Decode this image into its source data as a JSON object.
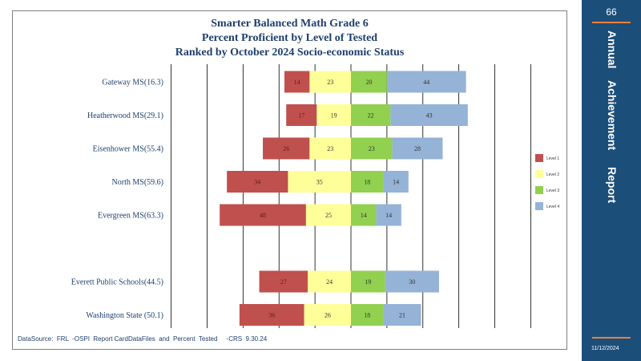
{
  "page": {
    "number": "66",
    "side_title": [
      "Annual",
      "Achievement",
      "Report"
    ],
    "footer_date": "11/12/2024",
    "source_note": "DataSource:  FRL  -OSPI  Report CardDataFiles  and  Percent  Tested     -CRS  9.30.24"
  },
  "colors": {
    "level1": "#c0504d",
    "level2": "#ffff99",
    "level3": "#92d050",
    "level4": "#95b3d7",
    "panel": "#1c4e7a",
    "accent": "#e8823a",
    "text": "#1f3f6e"
  },
  "chart_data": {
    "type": "bar",
    "orientation": "horizontal-diverging",
    "title": [
      "Smarter Balanced Math Grade 6",
      "Percent Proficient by Level of Tested",
      "Ranked by October 2024 Socio-economic  Status"
    ],
    "categories": [
      "Gateway MS(16.3)",
      "Heatherwood  MS(29.1)",
      "Eisenhower MS(55.4)",
      "North MS(59.6)",
      "Evergreen MS(63.3)",
      "",
      "Everett Public Schools(44.5)",
      "Washington State (50.1)"
    ],
    "series": [
      {
        "name": "Level 1",
        "values": [
          14,
          17,
          26,
          34,
          48,
          null,
          27,
          36
        ]
      },
      {
        "name": "Level 2",
        "values": [
          23,
          19,
          23,
          35,
          25,
          null,
          24,
          26
        ]
      },
      {
        "name": "Level 3",
        "values": [
          20,
          22,
          23,
          18,
          14,
          null,
          19,
          18
        ]
      },
      {
        "name": "Level 4",
        "values": [
          44,
          43,
          28,
          14,
          14,
          null,
          30,
          21
        ]
      }
    ],
    "xlim": [
      -100,
      100
    ],
    "grid": true,
    "legend": "right"
  }
}
